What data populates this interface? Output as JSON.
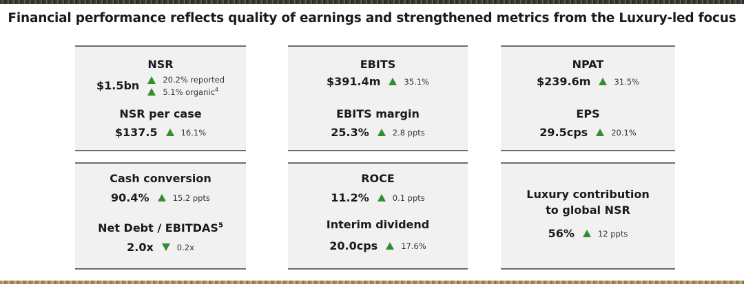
{
  "headline": "Financial performance reflects quality of earnings and strengthened metrics from the Luxury-led focus",
  "cards": {
    "nsr": {
      "label": "NSR",
      "value": "$1.5bn",
      "change1": "20.2% reported",
      "change2": "5.1% organic",
      "change2_sup": "4",
      "label2": "NSR per case",
      "value2": "$137.5",
      "change3": "16.1%"
    },
    "ebits": {
      "label": "EBITS",
      "value": "$391.4m",
      "change": "35.1%",
      "label2": "EBITS margin",
      "value2": "25.3%",
      "change2": "2.8 ppts"
    },
    "npat": {
      "label": "NPAT",
      "value": "$239.6m",
      "change": "31.5%",
      "label2": "EPS",
      "value2": "29.5cps",
      "change2": "20.1%"
    },
    "cash": {
      "label": "Cash conversion",
      "value": "90.4%",
      "change": "15.2 ppts",
      "label2": "Net Debt / EBITDAS",
      "label2_sup": "5",
      "value2": "2.0x",
      "change2": "0.2x"
    },
    "roce": {
      "label": "ROCE",
      "value": "11.2%",
      "change": "0.1 ppts",
      "label2": "Interim dividend",
      "value2": "20.0cps",
      "change2": "17.6%"
    },
    "luxury": {
      "label_line1": "Luxury contribution",
      "label_line2": "to global NSR",
      "value": "56%",
      "change": "12 ppts"
    }
  },
  "colors": {
    "up_arrow": "#2f8f2f",
    "card_bg": "#f1f1f1",
    "card_border": "#6d6d6d"
  },
  "icons": {
    "increase": "triangle-up-icon",
    "decrease": "triangle-down-icon"
  }
}
